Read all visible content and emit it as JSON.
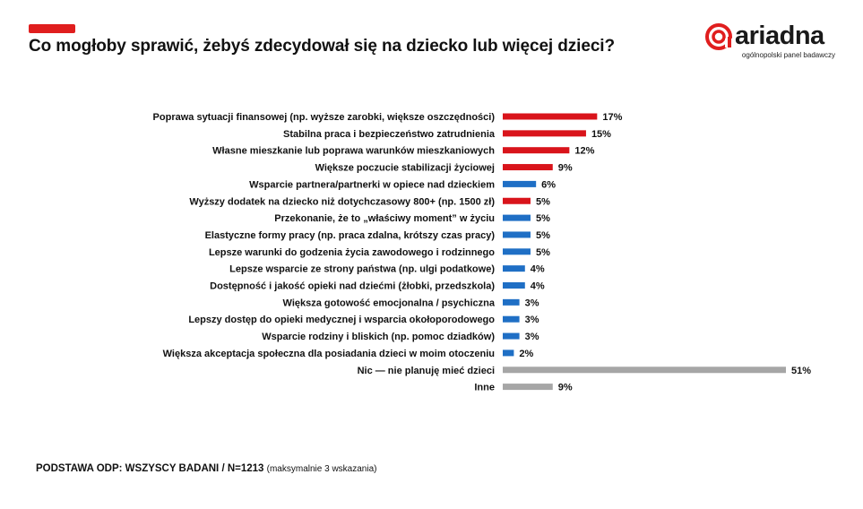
{
  "header": {
    "title": "Co mogłoby sprawić, żebyś zdecydował się na dziecko lub więcej dzieci?",
    "accent_color": "#e01e1e"
  },
  "logo": {
    "brand": "ariadna",
    "tagline": "ogólnopolski panel badawczy",
    "icon": "ariadna-spiral-icon"
  },
  "footer": {
    "base": "PODSTAWA ODP: WSZYSCY BADANI / N=1213",
    "note": "(maksymalnie 3 wskazania)"
  },
  "chart_data": {
    "type": "bar",
    "orientation": "horizontal",
    "value_suffix": "%",
    "categories": [
      "Poprawa sytuacji finansowej (np. wyższe zarobki, większe oszczędności)",
      "Stabilna praca i bezpieczeństwo zatrudnienia",
      "Własne mieszkanie lub poprawa warunków mieszkaniowych",
      "Większe poczucie stabilizacji życiowej",
      "Wsparcie partnera/partnerki w opiece nad dzieckiem",
      "Wyższy dodatek na dziecko niż dotychczasowy 800+ (np. 1500 zł)",
      "Przekonanie, że to „właściwy moment” w życiu",
      "Elastyczne formy pracy (np. praca zdalna, krótszy czas pracy)",
      "Lepsze warunki do godzenia życia zawodowego i rodzinnego",
      "Lepsze wsparcie ze strony państwa (np. ulgi podatkowe)",
      "Dostępność i jakość opieki nad dziećmi (żłobki, przedszkola)",
      "Większa gotowość emocjonalna / psychiczna",
      "Lepszy dostęp do opieki medycznej i wsparcia okołoporodowego",
      "Wsparcie rodziny i bliskich (np. pomoc dziadków)",
      "Większa akceptacja społeczna dla posiadania dzieci w moim otoczeniu",
      "Nic — nie planuję mieć dzieci",
      "Inne"
    ],
    "values": [
      17,
      15,
      12,
      9,
      6,
      5,
      5,
      5,
      5,
      4,
      4,
      3,
      3,
      3,
      2,
      51,
      9
    ],
    "colors": [
      "#d9141b",
      "#d9141b",
      "#d9141b",
      "#d9141b",
      "#1f6fc5",
      "#d9141b",
      "#1f6fc5",
      "#1f6fc5",
      "#1f6fc5",
      "#1f6fc5",
      "#1f6fc5",
      "#1f6fc5",
      "#1f6fc5",
      "#1f6fc5",
      "#1f6fc5",
      "#a6a6a6",
      "#a6a6a6"
    ],
    "xlim": [
      0,
      51
    ],
    "grid": false,
    "legend": "none"
  }
}
